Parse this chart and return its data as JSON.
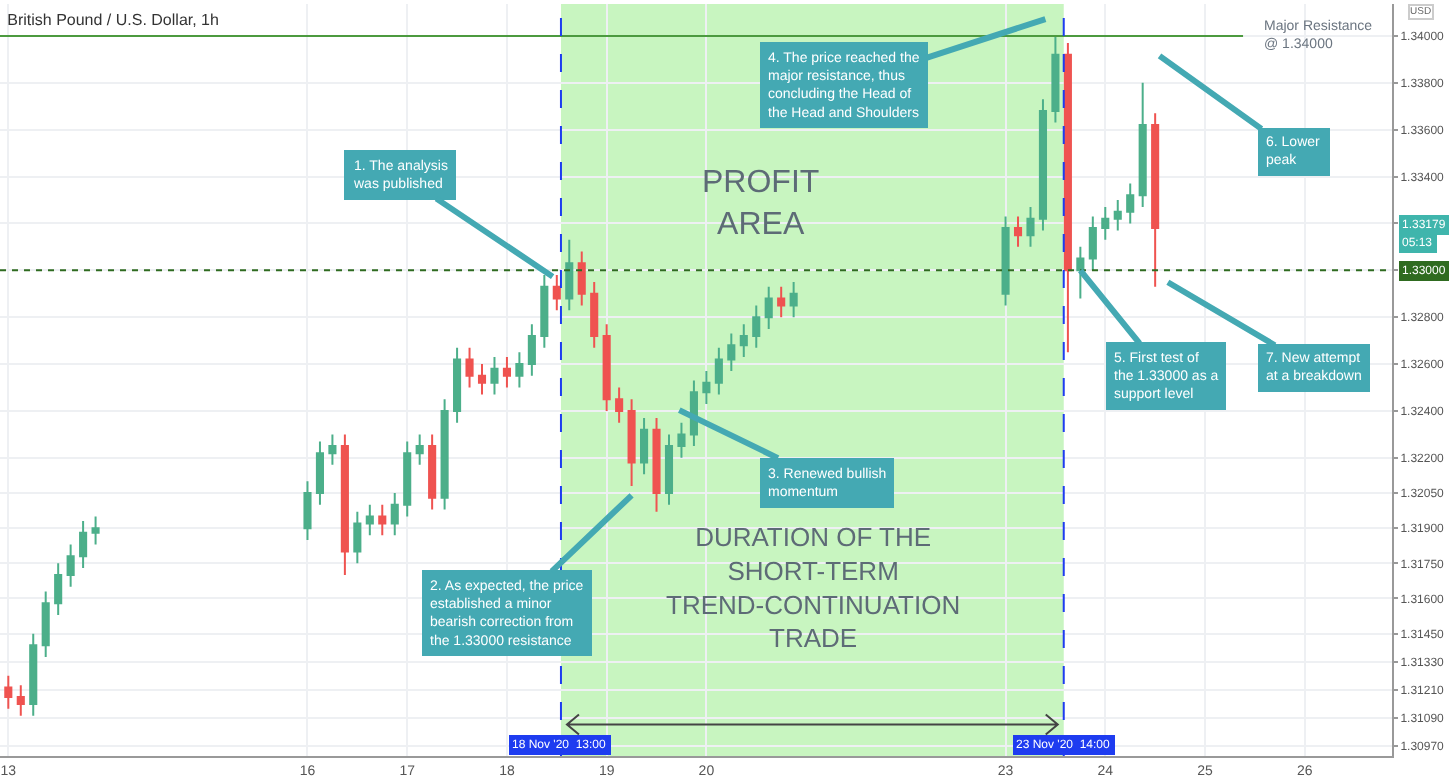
{
  "chart_data": {
    "type": "candlestick",
    "title": "British Pound / U.S. Dollar, 1h",
    "x": [
      "2020-11-13T00:00",
      "2020-11-13T03:00",
      "2020-11-13T06:00",
      "2020-11-13T09:00",
      "2020-11-13T12:00",
      "2020-11-13T15:00",
      "2020-11-13T18:00",
      "2020-11-13T21:00",
      "2020-11-16T00:00",
      "2020-11-16T03:00",
      "2020-11-16T06:00",
      "2020-11-16T09:00",
      "2020-11-16T12:00",
      "2020-11-16T15:00",
      "2020-11-16T18:00",
      "2020-11-16T21:00",
      "2020-11-17T00:00",
      "2020-11-17T03:00",
      "2020-11-17T06:00",
      "2020-11-17T09:00",
      "2020-11-17T12:00",
      "2020-11-17T15:00",
      "2020-11-17T18:00",
      "2020-11-17T21:00",
      "2020-11-18T00:00",
      "2020-11-18T03:00",
      "2020-11-18T06:00",
      "2020-11-18T09:00",
      "2020-11-18T12:00",
      "2020-11-18T15:00",
      "2020-11-18T18:00",
      "2020-11-18T21:00",
      "2020-11-19T00:00",
      "2020-11-19T03:00",
      "2020-11-19T06:00",
      "2020-11-19T09:00",
      "2020-11-19T12:00",
      "2020-11-19T15:00",
      "2020-11-19T18:00",
      "2020-11-19T21:00",
      "2020-11-20T00:00",
      "2020-11-20T03:00",
      "2020-11-20T06:00",
      "2020-11-20T09:00",
      "2020-11-20T12:00",
      "2020-11-20T15:00",
      "2020-11-20T18:00",
      "2020-11-20T21:00",
      "2020-11-23T00:00",
      "2020-11-23T03:00",
      "2020-11-23T06:00",
      "2020-11-23T09:00",
      "2020-11-23T12:00",
      "2020-11-23T15:00",
      "2020-11-23T18:00",
      "2020-11-23T21:00",
      "2020-11-24T00:00",
      "2020-11-24T03:00",
      "2020-11-24T06:00",
      "2020-11-24T09:00",
      "2020-11-24T12:00"
    ],
    "series": [
      {
        "colors": [
          "#ef5350",
          "#ef5350",
          "#4caf8a",
          "#4caf8a",
          "#4caf8a",
          "#4caf8a",
          "#4caf8a",
          "#4caf8a",
          "#4caf8a",
          "#4caf8a",
          "#4caf8a",
          "#ef5350",
          "#4caf8a",
          "#4caf8a",
          "#ef5350",
          "#4caf8a",
          "#4caf8a",
          "#4caf8a",
          "#ef5350",
          "#4caf8a",
          "#4caf8a",
          "#ef5350",
          "#ef5350",
          "#4caf8a",
          "#ef5350",
          "#4caf8a",
          "#4caf8a",
          "#4caf8a",
          "#ef5350",
          "#4caf8a",
          "#ef5350",
          "#ef5350",
          "#ef5350",
          "#ef5350",
          "#ef5350",
          "#4caf8a",
          "#ef5350",
          "#4caf8a",
          "#4caf8a",
          "#4caf8a",
          "#4caf8a",
          "#4caf8a",
          "#4caf8a",
          "#4caf8a",
          "#4caf8a",
          "#4caf8a",
          "#ef5350",
          "#4caf8a",
          "#4caf8a",
          "#ef5350",
          "#4caf8a",
          "#4caf8a",
          "#4caf8a",
          "#ef5350",
          "#4caf8a",
          "#4caf8a",
          "#4caf8a",
          "#4caf8a",
          "#4caf8a",
          "#4caf8a",
          "#ef5350"
        ],
        "ohlc": [
          [
            1.3122,
            1.3127,
            1.3113,
            1.3118
          ],
          [
            1.3118,
            1.3123,
            1.311,
            1.3115
          ],
          [
            1.3115,
            1.3145,
            1.311,
            1.314
          ],
          [
            1.314,
            1.3163,
            1.3135,
            1.3158
          ],
          [
            1.3158,
            1.3175,
            1.3153,
            1.317
          ],
          [
            1.317,
            1.3183,
            1.3165,
            1.3178
          ],
          [
            1.3178,
            1.3193,
            1.3173,
            1.3188
          ],
          [
            1.3188,
            1.3195,
            1.3183,
            1.319
          ],
          [
            1.319,
            1.321,
            1.3185,
            1.3205
          ],
          [
            1.3205,
            1.3227,
            1.32,
            1.3222
          ],
          [
            1.3222,
            1.323,
            1.3217,
            1.3225
          ],
          [
            1.3225,
            1.323,
            1.317,
            1.318
          ],
          [
            1.318,
            1.3197,
            1.3175,
            1.3192
          ],
          [
            1.3192,
            1.32,
            1.3187,
            1.3195
          ],
          [
            1.3195,
            1.32,
            1.3187,
            1.3192
          ],
          [
            1.3192,
            1.3205,
            1.3187,
            1.32
          ],
          [
            1.32,
            1.3227,
            1.3195,
            1.3222
          ],
          [
            1.3222,
            1.323,
            1.3217,
            1.3225
          ],
          [
            1.3225,
            1.323,
            1.3198,
            1.3203
          ],
          [
            1.3203,
            1.3245,
            1.3198,
            1.324
          ],
          [
            1.324,
            1.3267,
            1.3235,
            1.3262
          ],
          [
            1.3262,
            1.3267,
            1.325,
            1.3255
          ],
          [
            1.3255,
            1.326,
            1.3247,
            1.3252
          ],
          [
            1.3252,
            1.3263,
            1.3247,
            1.3258
          ],
          [
            1.3258,
            1.3263,
            1.325,
            1.3255
          ],
          [
            1.3255,
            1.3265,
            1.325,
            1.326
          ],
          [
            1.326,
            1.3277,
            1.3255,
            1.3272
          ],
          [
            1.3272,
            1.3298,
            1.3267,
            1.3293
          ],
          [
            1.3293,
            1.3298,
            1.3283,
            1.3288
          ],
          [
            1.3288,
            1.3313,
            1.3283,
            1.3303
          ],
          [
            1.3303,
            1.3308,
            1.3285,
            1.329
          ],
          [
            1.329,
            1.3295,
            1.3267,
            1.3272
          ],
          [
            1.3272,
            1.3277,
            1.324,
            1.3245
          ],
          [
            1.3245,
            1.325,
            1.3235,
            1.324
          ],
          [
            1.324,
            1.3245,
            1.3208,
            1.3218
          ],
          [
            1.3218,
            1.3237,
            1.3213,
            1.3232
          ],
          [
            1.3232,
            1.3237,
            1.3197,
            1.3205
          ],
          [
            1.3205,
            1.323,
            1.32,
            1.3225
          ],
          [
            1.3225,
            1.3235,
            1.322,
            1.323
          ],
          [
            1.323,
            1.3253,
            1.3225,
            1.3248
          ],
          [
            1.3248,
            1.3257,
            1.3243,
            1.3252
          ],
          [
            1.3252,
            1.3267,
            1.3247,
            1.3262
          ],
          [
            1.3262,
            1.3273,
            1.3257,
            1.3268
          ],
          [
            1.3268,
            1.3277,
            1.3263,
            1.3272
          ],
          [
            1.3272,
            1.3285,
            1.3267,
            1.328
          ],
          [
            1.328,
            1.3293,
            1.3275,
            1.3288
          ],
          [
            1.3288,
            1.3293,
            1.328,
            1.3285
          ],
          [
            1.3285,
            1.3295,
            1.328,
            1.329
          ],
          [
            1.329,
            1.3323,
            1.3285,
            1.3318
          ],
          [
            1.3318,
            1.3323,
            1.331,
            1.3315
          ],
          [
            1.3315,
            1.3327,
            1.331,
            1.3322
          ],
          [
            1.3322,
            1.3373,
            1.3317,
            1.3368
          ],
          [
            1.3368,
            1.34,
            1.3363,
            1.3392
          ],
          [
            1.3392,
            1.3397,
            1.3265,
            1.33
          ],
          [
            1.33,
            1.331,
            1.3288,
            1.3305
          ],
          [
            1.3305,
            1.3323,
            1.33,
            1.3318
          ],
          [
            1.3318,
            1.3327,
            1.3313,
            1.3322
          ],
          [
            1.3322,
            1.333,
            1.3317,
            1.3325
          ],
          [
            1.3325,
            1.3337,
            1.332,
            1.3332
          ],
          [
            1.3332,
            1.338,
            1.3327,
            1.3362
          ],
          [
            1.3362,
            1.3367,
            1.3293,
            1.3318
          ]
        ]
      }
    ],
    "xlim": [
      "2020-11-12T22:00",
      "2020-11-26T21:00"
    ],
    "xticks": [
      {
        "value": "2020-11-13",
        "label": "13"
      },
      {
        "value": "2020-11-16",
        "label": "16"
      },
      {
        "value": "2020-11-17",
        "label": "17"
      },
      {
        "value": "2020-11-18",
        "label": "18"
      },
      {
        "value": "2020-11-19",
        "label": "19"
      },
      {
        "value": "2020-11-20",
        "label": "20"
      },
      {
        "value": "2020-11-23",
        "label": "23"
      },
      {
        "value": "2020-11-24",
        "label": "24"
      },
      {
        "value": "2020-11-25",
        "label": "25"
      },
      {
        "value": "2020-11-26",
        "label": "26"
      }
    ],
    "ylim": [
      1.30928,
      1.34136
    ],
    "yticks": [
      {
        "value": 1.34,
        "label": "1.34000"
      },
      {
        "value": 1.338,
        "label": "1.33800"
      },
      {
        "value": 1.336,
        "label": "1.33600"
      },
      {
        "value": 1.334,
        "label": "1.33400"
      },
      {
        "value": 1.332,
        "label": null
      },
      {
        "value": 1.33,
        "label": null
      },
      {
        "value": 1.328,
        "label": "1.32800"
      },
      {
        "value": 1.326,
        "label": "1.32600"
      },
      {
        "value": 1.324,
        "label": "1.32400"
      },
      {
        "value": 1.322,
        "label": "1.32200"
      },
      {
        "value": 1.3205,
        "label": "1.32050"
      },
      {
        "value": 1.319,
        "label": "1.31900"
      },
      {
        "value": 1.3175,
        "label": "1.31750"
      },
      {
        "value": 1.316,
        "label": "1.31600"
      },
      {
        "value": 1.3145,
        "label": "1.31450"
      },
      {
        "value": 1.3133,
        "label": "1.31330"
      },
      {
        "value": 1.3121,
        "label": "1.31210"
      },
      {
        "value": 1.3109,
        "label": "1.31090"
      },
      {
        "value": 1.3097,
        "label": "1.30970"
      }
    ],
    "grid": true,
    "bands": [
      {
        "axis": "x",
        "from": "2020-11-18T13:00",
        "to": "2020-11-23T14:00",
        "label": "PROFIT AREA",
        "color": "#c8f5c0"
      }
    ],
    "ref_lines": [
      {
        "axis": "y",
        "value": 1.34,
        "label": "Major Resistance @ 1.34000",
        "color": "#4c9a3f",
        "line_style": "solid"
      },
      {
        "axis": "y",
        "value": 1.33,
        "label": "1.33000",
        "color": "#2f6b20",
        "line_style": "dotted"
      },
      {
        "axis": "x",
        "value": "2020-11-18T13:00",
        "label": "18 Nov '20  13:00",
        "color": "#1e3cf0",
        "line_style": "dashed"
      },
      {
        "axis": "x",
        "value": "2020-11-23T14:00",
        "label": "23 Nov '20  14:00",
        "color": "#1e3cf0",
        "line_style": "dashed"
      }
    ],
    "annotations": [
      {
        "text": "1. The analysis was published",
        "x": "2020-11-18T11:00",
        "y": 1.32973
      },
      {
        "text": "2. As expected, the price established a minor bearish correction from the 1.33000 resistance",
        "x": "2020-11-19T06:00",
        "y": 1.3204
      },
      "3. Renewed bullish momentum",
      "4. The price reached the major resistance, thus concluding the Head of the Head and Shoulders",
      {
        "text": "5. First test of the 1.33000 as a support level",
        "x": "2020-11-23T18:00",
        "y": 1.33
      },
      "6. Lower peak",
      "7. New attempt at a breakdown",
      "DURATION OF THE SHORT-TERM TREND-CONTINUATION TRADE",
      "1.33179",
      "05:13",
      "USD"
    ]
  }
}
